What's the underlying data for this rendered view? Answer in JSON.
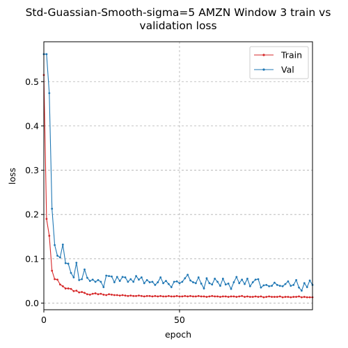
{
  "chart_data": {
    "type": "line",
    "title_lines": [
      "Std-Guassian-Smooth-sigma=5 AMZN Window 3 train vs",
      "validation loss"
    ],
    "xlabel": "epoch",
    "ylabel": "loss",
    "xlim": [
      0,
      99
    ],
    "ylim": [
      -0.015,
      0.59
    ],
    "xticks": [
      0,
      50
    ],
    "yticks": [
      0.0,
      0.1,
      0.2,
      0.3,
      0.4,
      0.5
    ],
    "xtick_labels": [
      "0",
      "50"
    ],
    "ytick_labels": [
      "0.0",
      "0.1",
      "0.2",
      "0.3",
      "0.4",
      "0.5"
    ],
    "grid": true,
    "legend_position": "top-right",
    "series": [
      {
        "name": "Train",
        "color": "#d62728",
        "x": [
          0,
          1,
          2,
          3,
          4,
          5,
          6,
          7,
          8,
          9,
          10,
          11,
          12,
          13,
          14,
          15,
          16,
          17,
          18,
          19,
          20,
          21,
          22,
          23,
          24,
          25,
          26,
          27,
          28,
          29,
          30,
          31,
          32,
          33,
          34,
          35,
          36,
          37,
          38,
          39,
          40,
          41,
          42,
          43,
          44,
          45,
          46,
          47,
          48,
          49,
          50,
          51,
          52,
          53,
          54,
          55,
          56,
          57,
          58,
          59,
          60,
          61,
          62,
          63,
          64,
          65,
          66,
          67,
          68,
          69,
          70,
          71,
          72,
          73,
          74,
          75,
          76,
          77,
          78,
          79,
          80,
          81,
          82,
          83,
          84,
          85,
          86,
          87,
          88,
          89,
          90,
          91,
          92,
          93,
          94,
          95,
          96,
          97,
          98,
          99
        ],
        "values": [
          0.515,
          0.19,
          0.152,
          0.073,
          0.054,
          0.053,
          0.042,
          0.038,
          0.033,
          0.033,
          0.032,
          0.027,
          0.028,
          0.024,
          0.025,
          0.023,
          0.02,
          0.019,
          0.021,
          0.022,
          0.02,
          0.021,
          0.019,
          0.018,
          0.02,
          0.019,
          0.018,
          0.018,
          0.017,
          0.018,
          0.017,
          0.016,
          0.017,
          0.016,
          0.016,
          0.017,
          0.016,
          0.015,
          0.016,
          0.016,
          0.015,
          0.016,
          0.015,
          0.016,
          0.015,
          0.015,
          0.016,
          0.015,
          0.015,
          0.016,
          0.015,
          0.015,
          0.016,
          0.015,
          0.016,
          0.015,
          0.015,
          0.016,
          0.015,
          0.015,
          0.014,
          0.015,
          0.016,
          0.015,
          0.015,
          0.014,
          0.015,
          0.015,
          0.014,
          0.015,
          0.015,
          0.014,
          0.015,
          0.016,
          0.014,
          0.015,
          0.014,
          0.014,
          0.015,
          0.014,
          0.015,
          0.013,
          0.014,
          0.015,
          0.014,
          0.014,
          0.014,
          0.015,
          0.013,
          0.014,
          0.014,
          0.013,
          0.014,
          0.014,
          0.015,
          0.013,
          0.014,
          0.013,
          0.013,
          0.013
        ]
      },
      {
        "name": "Val",
        "color": "#1f77b4",
        "x": [
          0,
          1,
          2,
          3,
          4,
          5,
          6,
          7,
          8,
          9,
          10,
          11,
          12,
          13,
          14,
          15,
          16,
          17,
          18,
          19,
          20,
          21,
          22,
          23,
          24,
          25,
          26,
          27,
          28,
          29,
          30,
          31,
          32,
          33,
          34,
          35,
          36,
          37,
          38,
          39,
          40,
          41,
          42,
          43,
          44,
          45,
          46,
          47,
          48,
          49,
          50,
          51,
          52,
          53,
          54,
          55,
          56,
          57,
          58,
          59,
          60,
          61,
          62,
          63,
          64,
          65,
          66,
          67,
          68,
          69,
          70,
          71,
          72,
          73,
          74,
          75,
          76,
          77,
          78,
          79,
          80,
          81,
          82,
          83,
          84,
          85,
          86,
          87,
          88,
          89,
          90,
          91,
          92,
          93,
          94,
          95,
          96,
          97,
          98,
          99
        ],
        "values": [
          0.562,
          0.562,
          0.474,
          0.213,
          0.131,
          0.107,
          0.103,
          0.132,
          0.09,
          0.089,
          0.068,
          0.058,
          0.091,
          0.052,
          0.054,
          0.076,
          0.057,
          0.05,
          0.053,
          0.048,
          0.052,
          0.048,
          0.036,
          0.062,
          0.061,
          0.06,
          0.047,
          0.059,
          0.05,
          0.059,
          0.058,
          0.048,
          0.054,
          0.048,
          0.061,
          0.053,
          0.058,
          0.045,
          0.052,
          0.047,
          0.048,
          0.041,
          0.047,
          0.058,
          0.045,
          0.05,
          0.043,
          0.036,
          0.048,
          0.049,
          0.045,
          0.048,
          0.056,
          0.064,
          0.051,
          0.047,
          0.045,
          0.058,
          0.044,
          0.033,
          0.056,
          0.045,
          0.042,
          0.055,
          0.048,
          0.039,
          0.055,
          0.042,
          0.044,
          0.032,
          0.047,
          0.059,
          0.045,
          0.053,
          0.043,
          0.055,
          0.038,
          0.047,
          0.053,
          0.054,
          0.035,
          0.04,
          0.041,
          0.038,
          0.039,
          0.046,
          0.041,
          0.039,
          0.038,
          0.043,
          0.049,
          0.039,
          0.041,
          0.052,
          0.035,
          0.028,
          0.045,
          0.036,
          0.051,
          0.041
        ]
      }
    ]
  }
}
